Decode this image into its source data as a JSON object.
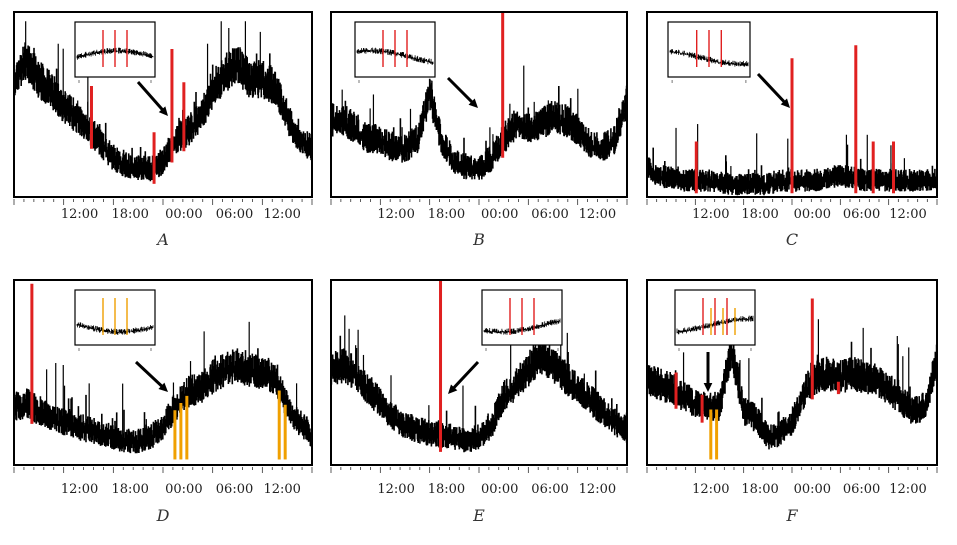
{
  "chart_data": [
    {
      "type": "line",
      "label": "A",
      "x_ticks": [
        "12:00",
        "18:00",
        "00:00",
        "06:00",
        "12:00"
      ],
      "baseline": [
        0.6,
        0.72,
        0.62,
        0.56,
        0.48,
        0.42,
        0.36,
        0.28,
        0.2,
        0.16,
        0.15,
        0.14,
        0.18,
        0.3,
        0.34,
        0.42,
        0.55,
        0.65,
        0.7,
        0.62,
        0.62,
        0.58,
        0.42,
        0.3,
        0.25
      ],
      "red_spikes": [
        [
          0.26,
          0.6
        ],
        [
          0.47,
          0.35
        ],
        [
          0.53,
          0.8
        ],
        [
          0.57,
          0.62
        ]
      ],
      "orange_spikes": [],
      "inset": {
        "present": true,
        "colors": [
          "red"
        ]
      }
    },
    {
      "type": "line",
      "label": "B",
      "x_ticks": [
        "12:00",
        "18:00",
        "00:00",
        "06:00",
        "12:00"
      ],
      "baseline": [
        0.4,
        0.4,
        0.36,
        0.3,
        0.3,
        0.25,
        0.25,
        0.3,
        0.55,
        0.28,
        0.18,
        0.15,
        0.14,
        0.2,
        0.3,
        0.38,
        0.36,
        0.38,
        0.42,
        0.4,
        0.35,
        0.28,
        0.25,
        0.3,
        0.5
      ],
      "red_spikes": [
        [
          0.58,
          1.0
        ]
      ],
      "orange_spikes": [],
      "inset": {
        "present": true,
        "colors": [
          "red"
        ]
      }
    },
    {
      "type": "line",
      "label": "C",
      "x_ticks": [
        "12:00",
        "18:00",
        "00:00",
        "06:00",
        "12:00"
      ],
      "baseline": [
        0.15,
        0.1,
        0.1,
        0.08,
        0.08,
        0.08,
        0.07,
        0.06,
        0.06,
        0.06,
        0.06,
        0.08,
        0.08,
        0.08,
        0.08,
        0.1,
        0.1,
        0.1,
        0.08,
        0.08,
        0.08,
        0.08,
        0.08,
        0.08,
        0.08
      ],
      "red_spikes": [
        [
          0.17,
          0.3
        ],
        [
          0.5,
          0.75
        ],
        [
          0.72,
          0.82
        ],
        [
          0.78,
          0.3
        ],
        [
          0.85,
          0.3
        ]
      ],
      "orange_spikes": [],
      "inset": {
        "present": true,
        "colors": [
          "red"
        ]
      }
    },
    {
      "type": "line",
      "label": "D",
      "x_ticks": [
        "12:00",
        "18:00",
        "00:00",
        "06:00",
        "12:00"
      ],
      "baseline": [
        0.3,
        0.32,
        0.28,
        0.25,
        0.22,
        0.2,
        0.18,
        0.16,
        0.14,
        0.12,
        0.12,
        0.14,
        0.2,
        0.3,
        0.38,
        0.4,
        0.46,
        0.5,
        0.52,
        0.5,
        0.48,
        0.46,
        0.3,
        0.22,
        0.15
      ],
      "red_spikes": [
        [
          0.06,
          0.98
        ]
      ],
      "orange_spikes": [
        [
          0.54,
          0.25
        ],
        [
          0.56,
          0.3
        ],
        [
          0.58,
          0.22
        ],
        [
          0.89,
          0.25
        ],
        [
          0.91,
          0.2
        ]
      ],
      "inset": {
        "present": true,
        "colors": [
          "orange"
        ]
      }
    },
    {
      "type": "line",
      "label": "E",
      "x_ticks": [
        "12:00",
        "18:00",
        "00:00",
        "06:00",
        "12:00"
      ],
      "baseline": [
        0.5,
        0.52,
        0.48,
        0.4,
        0.32,
        0.25,
        0.2,
        0.18,
        0.16,
        0.15,
        0.14,
        0.12,
        0.14,
        0.2,
        0.36,
        0.42,
        0.5,
        0.58,
        0.52,
        0.46,
        0.4,
        0.34,
        0.28,
        0.22,
        0.18
      ],
      "red_spikes": [
        [
          0.37,
          1.0
        ]
      ],
      "orange_spikes": [],
      "inset": {
        "present": true,
        "colors": [
          "red"
        ]
      }
    },
    {
      "type": "line",
      "label": "F",
      "x_ticks": [
        "12:00",
        "18:00",
        "00:00",
        "06:00",
        "12:00"
      ],
      "baseline": [
        0.46,
        0.42,
        0.4,
        0.36,
        0.32,
        0.3,
        0.3,
        0.62,
        0.28,
        0.24,
        0.14,
        0.16,
        0.22,
        0.38,
        0.46,
        0.48,
        0.46,
        0.48,
        0.46,
        0.44,
        0.4,
        0.34,
        0.28,
        0.3,
        0.55
      ],
      "red_spikes": [
        [
          0.1,
          0.5
        ],
        [
          0.19,
          0.38
        ],
        [
          0.57,
          0.9
        ],
        [
          0.66,
          0.45
        ]
      ],
      "orange_spikes": [
        [
          0.22,
          0.22
        ],
        [
          0.24,
          0.2
        ]
      ],
      "inset": {
        "present": true,
        "colors": [
          "red",
          "orange"
        ]
      }
    }
  ]
}
